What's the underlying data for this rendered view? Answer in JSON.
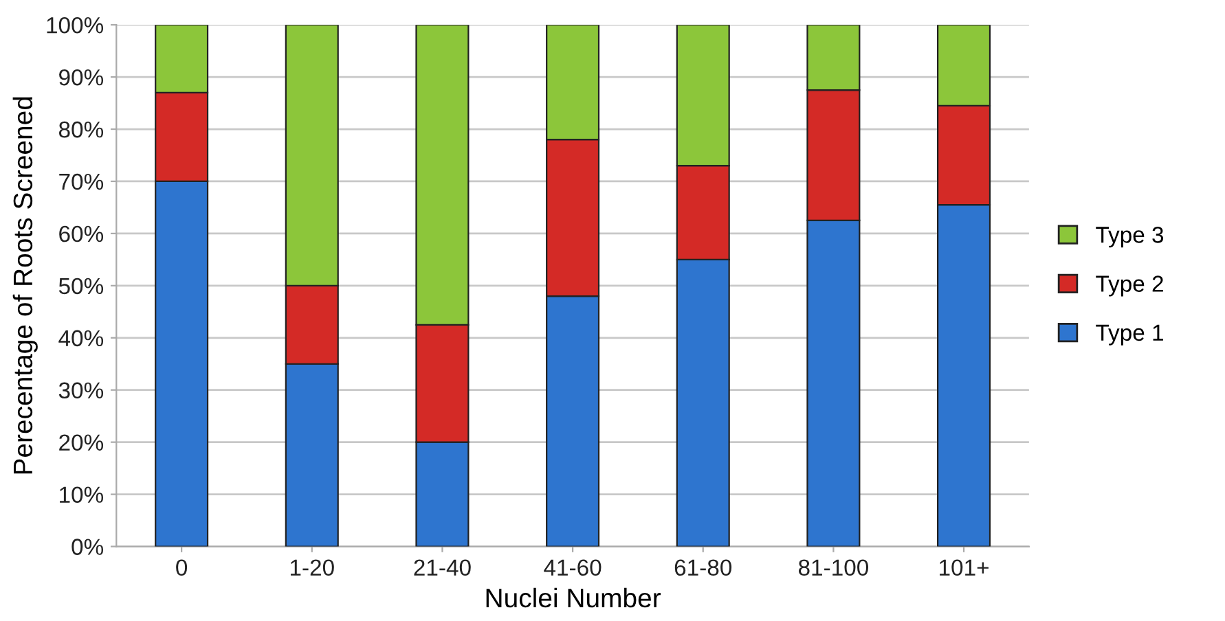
{
  "chart_data": {
    "type": "bar",
    "stacked": true,
    "xlabel": "Nuclei Number",
    "ylabel": "Perecentage of Roots Screened",
    "categories": [
      "0",
      "1-20",
      "21-40",
      "41-60",
      "61-80",
      "81-100",
      "101+"
    ],
    "series": [
      {
        "name": "Type 1",
        "color": "#2e75cf",
        "values": [
          70,
          35,
          20,
          48,
          55,
          62.5,
          65.5
        ]
      },
      {
        "name": "Type 2",
        "color": "#d42a26",
        "values": [
          17,
          15,
          22.5,
          30,
          18,
          25,
          19
        ]
      },
      {
        "name": "Type 3",
        "color": "#8cc63a",
        "values": [
          13,
          50,
          57.5,
          22,
          27,
          12.5,
          15.5
        ]
      }
    ],
    "ylim": [
      0,
      100
    ],
    "yticks": [
      {
        "value": 0,
        "label": "0%"
      },
      {
        "value": 10,
        "label": "10%"
      },
      {
        "value": 20,
        "label": "20%"
      },
      {
        "value": 30,
        "label": "30%"
      },
      {
        "value": 40,
        "label": "40%"
      },
      {
        "value": 50,
        "label": "50%"
      },
      {
        "value": 60,
        "label": "60%"
      },
      {
        "value": 70,
        "label": "70%"
      },
      {
        "value": 80,
        "label": "80%"
      },
      {
        "value": 90,
        "label": "90%"
      },
      {
        "value": 100,
        "label": "100%"
      }
    ],
    "grid": "y",
    "legend": "right"
  }
}
